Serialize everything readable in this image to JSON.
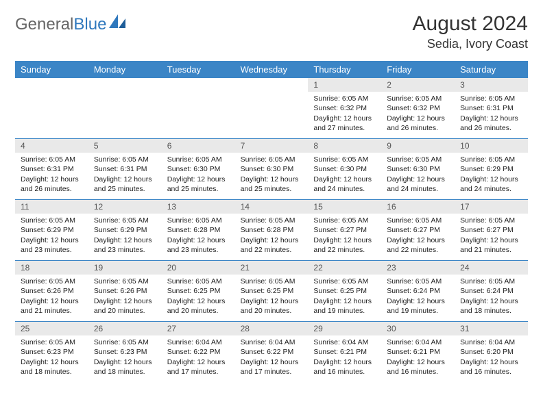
{
  "brand": {
    "word1": "General",
    "word2": "Blue"
  },
  "title": "August 2024",
  "location": "Sedia, Ivory Coast",
  "colors": {
    "header_bg": "#3b85c6",
    "header_text": "#ffffff",
    "daynum_bg": "#e9e9e9",
    "brand_blue": "#2f78bd",
    "border": "#3b85c6"
  },
  "day_headers": [
    "Sunday",
    "Monday",
    "Tuesday",
    "Wednesday",
    "Thursday",
    "Friday",
    "Saturday"
  ],
  "weeks": [
    [
      {
        "blank": true
      },
      {
        "blank": true
      },
      {
        "blank": true
      },
      {
        "blank": true
      },
      {
        "num": "1",
        "sunrise": "Sunrise: 6:05 AM",
        "sunset": "Sunset: 6:32 PM",
        "day1": "Daylight: 12 hours",
        "day2": "and 27 minutes."
      },
      {
        "num": "2",
        "sunrise": "Sunrise: 6:05 AM",
        "sunset": "Sunset: 6:32 PM",
        "day1": "Daylight: 12 hours",
        "day2": "and 26 minutes."
      },
      {
        "num": "3",
        "sunrise": "Sunrise: 6:05 AM",
        "sunset": "Sunset: 6:31 PM",
        "day1": "Daylight: 12 hours",
        "day2": "and 26 minutes."
      }
    ],
    [
      {
        "num": "4",
        "sunrise": "Sunrise: 6:05 AM",
        "sunset": "Sunset: 6:31 PM",
        "day1": "Daylight: 12 hours",
        "day2": "and 26 minutes."
      },
      {
        "num": "5",
        "sunrise": "Sunrise: 6:05 AM",
        "sunset": "Sunset: 6:31 PM",
        "day1": "Daylight: 12 hours",
        "day2": "and 25 minutes."
      },
      {
        "num": "6",
        "sunrise": "Sunrise: 6:05 AM",
        "sunset": "Sunset: 6:30 PM",
        "day1": "Daylight: 12 hours",
        "day2": "and 25 minutes."
      },
      {
        "num": "7",
        "sunrise": "Sunrise: 6:05 AM",
        "sunset": "Sunset: 6:30 PM",
        "day1": "Daylight: 12 hours",
        "day2": "and 25 minutes."
      },
      {
        "num": "8",
        "sunrise": "Sunrise: 6:05 AM",
        "sunset": "Sunset: 6:30 PM",
        "day1": "Daylight: 12 hours",
        "day2": "and 24 minutes."
      },
      {
        "num": "9",
        "sunrise": "Sunrise: 6:05 AM",
        "sunset": "Sunset: 6:30 PM",
        "day1": "Daylight: 12 hours",
        "day2": "and 24 minutes."
      },
      {
        "num": "10",
        "sunrise": "Sunrise: 6:05 AM",
        "sunset": "Sunset: 6:29 PM",
        "day1": "Daylight: 12 hours",
        "day2": "and 24 minutes."
      }
    ],
    [
      {
        "num": "11",
        "sunrise": "Sunrise: 6:05 AM",
        "sunset": "Sunset: 6:29 PM",
        "day1": "Daylight: 12 hours",
        "day2": "and 23 minutes."
      },
      {
        "num": "12",
        "sunrise": "Sunrise: 6:05 AM",
        "sunset": "Sunset: 6:29 PM",
        "day1": "Daylight: 12 hours",
        "day2": "and 23 minutes."
      },
      {
        "num": "13",
        "sunrise": "Sunrise: 6:05 AM",
        "sunset": "Sunset: 6:28 PM",
        "day1": "Daylight: 12 hours",
        "day2": "and 23 minutes."
      },
      {
        "num": "14",
        "sunrise": "Sunrise: 6:05 AM",
        "sunset": "Sunset: 6:28 PM",
        "day1": "Daylight: 12 hours",
        "day2": "and 22 minutes."
      },
      {
        "num": "15",
        "sunrise": "Sunrise: 6:05 AM",
        "sunset": "Sunset: 6:27 PM",
        "day1": "Daylight: 12 hours",
        "day2": "and 22 minutes."
      },
      {
        "num": "16",
        "sunrise": "Sunrise: 6:05 AM",
        "sunset": "Sunset: 6:27 PM",
        "day1": "Daylight: 12 hours",
        "day2": "and 22 minutes."
      },
      {
        "num": "17",
        "sunrise": "Sunrise: 6:05 AM",
        "sunset": "Sunset: 6:27 PM",
        "day1": "Daylight: 12 hours",
        "day2": "and 21 minutes."
      }
    ],
    [
      {
        "num": "18",
        "sunrise": "Sunrise: 6:05 AM",
        "sunset": "Sunset: 6:26 PM",
        "day1": "Daylight: 12 hours",
        "day2": "and 21 minutes."
      },
      {
        "num": "19",
        "sunrise": "Sunrise: 6:05 AM",
        "sunset": "Sunset: 6:26 PM",
        "day1": "Daylight: 12 hours",
        "day2": "and 20 minutes."
      },
      {
        "num": "20",
        "sunrise": "Sunrise: 6:05 AM",
        "sunset": "Sunset: 6:25 PM",
        "day1": "Daylight: 12 hours",
        "day2": "and 20 minutes."
      },
      {
        "num": "21",
        "sunrise": "Sunrise: 6:05 AM",
        "sunset": "Sunset: 6:25 PM",
        "day1": "Daylight: 12 hours",
        "day2": "and 20 minutes."
      },
      {
        "num": "22",
        "sunrise": "Sunrise: 6:05 AM",
        "sunset": "Sunset: 6:25 PM",
        "day1": "Daylight: 12 hours",
        "day2": "and 19 minutes."
      },
      {
        "num": "23",
        "sunrise": "Sunrise: 6:05 AM",
        "sunset": "Sunset: 6:24 PM",
        "day1": "Daylight: 12 hours",
        "day2": "and 19 minutes."
      },
      {
        "num": "24",
        "sunrise": "Sunrise: 6:05 AM",
        "sunset": "Sunset: 6:24 PM",
        "day1": "Daylight: 12 hours",
        "day2": "and 18 minutes."
      }
    ],
    [
      {
        "num": "25",
        "sunrise": "Sunrise: 6:05 AM",
        "sunset": "Sunset: 6:23 PM",
        "day1": "Daylight: 12 hours",
        "day2": "and 18 minutes."
      },
      {
        "num": "26",
        "sunrise": "Sunrise: 6:05 AM",
        "sunset": "Sunset: 6:23 PM",
        "day1": "Daylight: 12 hours",
        "day2": "and 18 minutes."
      },
      {
        "num": "27",
        "sunrise": "Sunrise: 6:04 AM",
        "sunset": "Sunset: 6:22 PM",
        "day1": "Daylight: 12 hours",
        "day2": "and 17 minutes."
      },
      {
        "num": "28",
        "sunrise": "Sunrise: 6:04 AM",
        "sunset": "Sunset: 6:22 PM",
        "day1": "Daylight: 12 hours",
        "day2": "and 17 minutes."
      },
      {
        "num": "29",
        "sunrise": "Sunrise: 6:04 AM",
        "sunset": "Sunset: 6:21 PM",
        "day1": "Daylight: 12 hours",
        "day2": "and 16 minutes."
      },
      {
        "num": "30",
        "sunrise": "Sunrise: 6:04 AM",
        "sunset": "Sunset: 6:21 PM",
        "day1": "Daylight: 12 hours",
        "day2": "and 16 minutes."
      },
      {
        "num": "31",
        "sunrise": "Sunrise: 6:04 AM",
        "sunset": "Sunset: 6:20 PM",
        "day1": "Daylight: 12 hours",
        "day2": "and 16 minutes."
      }
    ]
  ]
}
